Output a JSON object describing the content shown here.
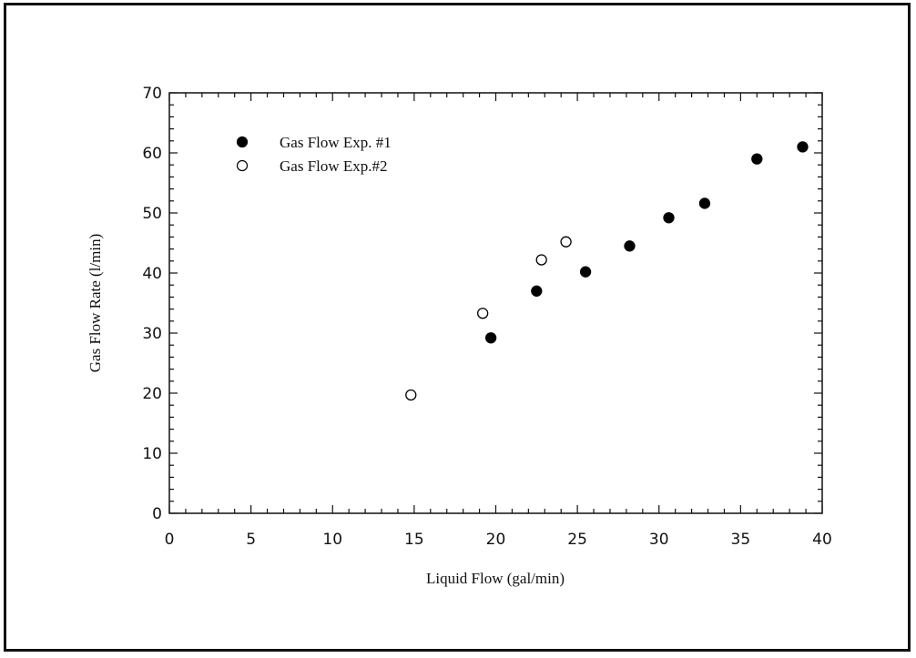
{
  "chart_data": {
    "type": "scatter",
    "title": "",
    "xlabel": "Liquid Flow (gal/min)",
    "ylabel": "Gas Flow Rate (l/min)",
    "xlim": [
      0,
      40
    ],
    "ylim": [
      0,
      70
    ],
    "xticks": [
      0,
      5,
      10,
      15,
      20,
      25,
      30,
      35,
      40
    ],
    "yticks": [
      0,
      10,
      20,
      30,
      40,
      50,
      60,
      70
    ],
    "grid": false,
    "legend_position": "top-left",
    "series": [
      {
        "name": "Gas Flow Exp. #1",
        "marker": "filled-circle",
        "color": "#000000",
        "points": [
          {
            "x": 19.7,
            "y": 29.2
          },
          {
            "x": 22.5,
            "y": 37.0
          },
          {
            "x": 25.5,
            "y": 40.2
          },
          {
            "x": 28.2,
            "y": 44.5
          },
          {
            "x": 30.6,
            "y": 49.2
          },
          {
            "x": 32.8,
            "y": 51.6
          },
          {
            "x": 36.0,
            "y": 59.0
          },
          {
            "x": 38.8,
            "y": 61.0
          }
        ]
      },
      {
        "name": "Gas Flow Exp.#2",
        "marker": "open-circle",
        "color": "#000000",
        "points": [
          {
            "x": 14.8,
            "y": 19.7
          },
          {
            "x": 19.2,
            "y": 33.3
          },
          {
            "x": 22.8,
            "y": 42.2
          },
          {
            "x": 24.3,
            "y": 45.2
          }
        ]
      }
    ]
  }
}
